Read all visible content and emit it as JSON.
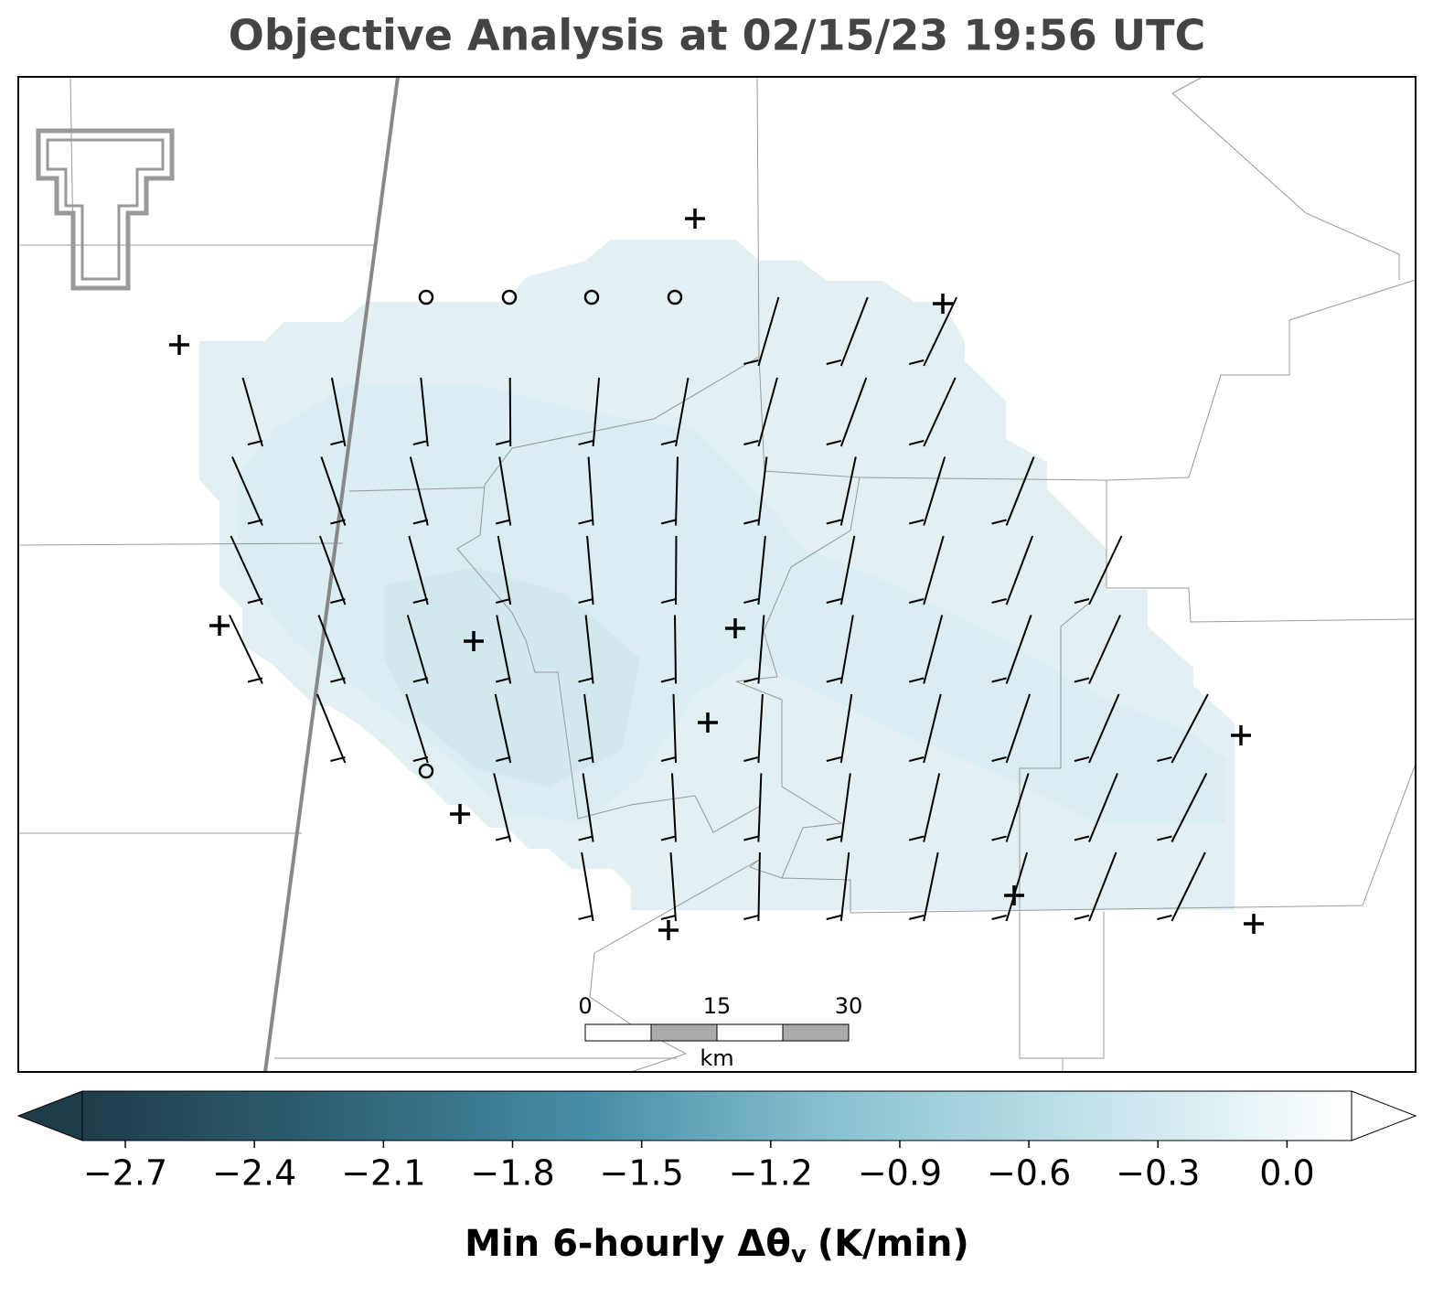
{
  "title": "Objective Analysis at 02/15/23 19:56 UTC",
  "colorbar": {
    "label_main": "Min 6-hourly Δθ",
    "label_sub": "v",
    "label_tail": "(K/min)",
    "lim": [
      -2.8,
      0.15
    ],
    "colors": [
      "#1f3c4a",
      "#2f6275",
      "#468ea6",
      "#8cc3d3",
      "#c3e3ea",
      "#ffffff"
    ],
    "ticks": [
      {
        "value": -2.7,
        "label": "−2.7"
      },
      {
        "value": -2.4,
        "label": "−2.4"
      },
      {
        "value": -2.1,
        "label": "−2.1"
      },
      {
        "value": -1.8,
        "label": "−1.8"
      },
      {
        "value": -1.5,
        "label": "−1.5"
      },
      {
        "value": -1.2,
        "label": "−1.2"
      },
      {
        "value": -0.9,
        "label": "−0.9"
      },
      {
        "value": -0.6,
        "label": "−0.6"
      },
      {
        "value": -0.3,
        "label": "−0.3"
      },
      {
        "value": 0,
        "label": "0.0"
      }
    ]
  },
  "scale_bar": {
    "labels": [
      "0",
      "15",
      "30"
    ],
    "unit": "km"
  }
}
